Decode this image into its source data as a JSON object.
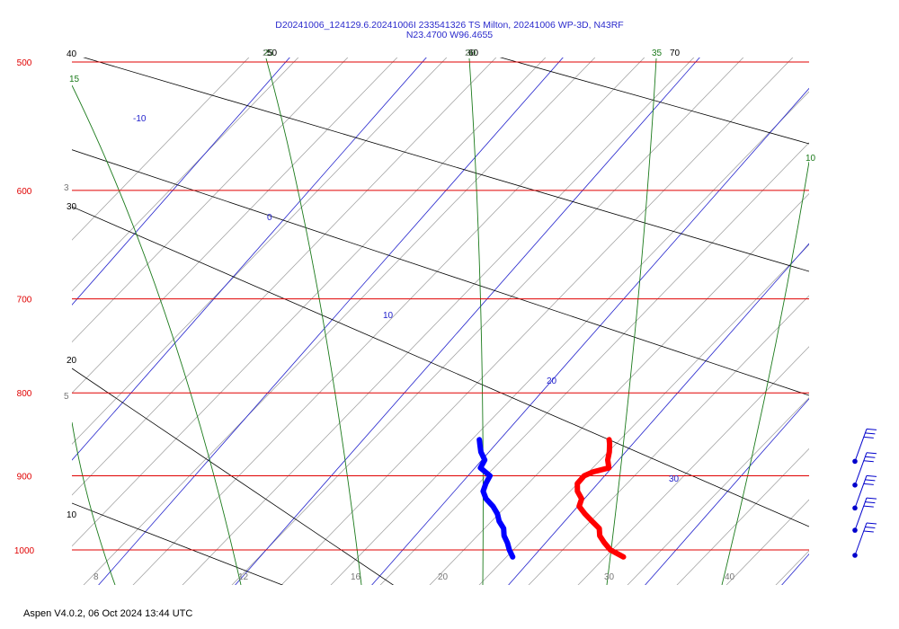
{
  "header": {
    "title_line1": "D20241006_124129.6.20241006I 233541326 TS Milton, 20241006 WP-3D, N43RF",
    "title_line2": "N23.4700 W96.4655"
  },
  "footer": {
    "text": "Aspen V4.0.2, 06 Oct 2024  13:44 UTC"
  },
  "colors": {
    "isobar": "#e00000",
    "isotherm": "#2222cc",
    "mixing_ratio": "#1b7a1b",
    "dry_adiabat": "#000000",
    "moist_adiabat": "#9a9a9a",
    "temperature": "#ff0000",
    "dewpoint": "#0000ff",
    "wind": "#0000cc"
  },
  "chart_data": {
    "type": "line",
    "subtype": "skew-T log-P sounding",
    "pressure_range_hPa": [
      500,
      1010
    ],
    "isobars_hPa": [
      "500",
      "600",
      "700",
      "800",
      "900",
      "1000"
    ],
    "isotherm_labels_C": [
      "-10",
      "0",
      "10",
      "20",
      "30"
    ],
    "isotherm_values_C": [
      -30,
      -20,
      -10,
      0,
      10,
      20,
      30,
      40
    ],
    "mixing_ratio_labels": [
      "15",
      "25",
      "30",
      "35",
      "10"
    ],
    "dry_adiabat_labels": [
      "40",
      "30",
      "20",
      "10",
      "50",
      "60",
      "70"
    ],
    "moist_adiabat_top_labels": [
      "25",
      "26"
    ],
    "side_labels": [
      "3",
      "5"
    ],
    "bottom_labels": [
      "8",
      "12",
      "16",
      "20",
      "30",
      "40"
    ],
    "series": [
      {
        "name": "Temperature",
        "points": [
          {
            "p": 1010,
            "t": 26.6
          },
          {
            "p": 1000,
            "t": 25.2
          },
          {
            "p": 990,
            "t": 24.3
          },
          {
            "p": 980,
            "t": 23.5
          },
          {
            "p": 970,
            "t": 23.0
          },
          {
            "p": 960,
            "t": 22.0
          },
          {
            "p": 950,
            "t": 21.0
          },
          {
            "p": 940,
            "t": 20.1
          },
          {
            "p": 930,
            "t": 19.8
          },
          {
            "p": 920,
            "t": 19.0
          },
          {
            "p": 910,
            "t": 18.5
          },
          {
            "p": 900,
            "t": 18.5
          },
          {
            "p": 895,
            "t": 18.9
          },
          {
            "p": 890,
            "t": 19.8
          },
          {
            "p": 880,
            "t": 19.2
          },
          {
            "p": 870,
            "t": 18.8
          },
          {
            "p": 860,
            "t": 18.3
          },
          {
            "p": 855,
            "t": 18.0
          }
        ]
      },
      {
        "name": "Dewpoint",
        "points": [
          {
            "p": 1010,
            "t": 18.5
          },
          {
            "p": 1000,
            "t": 17.8
          },
          {
            "p": 990,
            "t": 17.2
          },
          {
            "p": 980,
            "t": 16.5
          },
          {
            "p": 970,
            "t": 16.0
          },
          {
            "p": 960,
            "t": 15.2
          },
          {
            "p": 950,
            "t": 14.6
          },
          {
            "p": 940,
            "t": 13.8
          },
          {
            "p": 930,
            "t": 12.8
          },
          {
            "p": 920,
            "t": 12.1
          },
          {
            "p": 910,
            "t": 11.8
          },
          {
            "p": 900,
            "t": 11.6
          },
          {
            "p": 890,
            "t": 10.4
          },
          {
            "p": 880,
            "t": 10.2
          },
          {
            "p": 870,
            "t": 9.4
          },
          {
            "p": 860,
            "t": 8.8
          },
          {
            "p": 855,
            "t": 8.5
          }
        ]
      }
    ],
    "wind_barb_pressures_hPa": [
      875,
      905,
      935,
      965,
      1000
    ]
  }
}
